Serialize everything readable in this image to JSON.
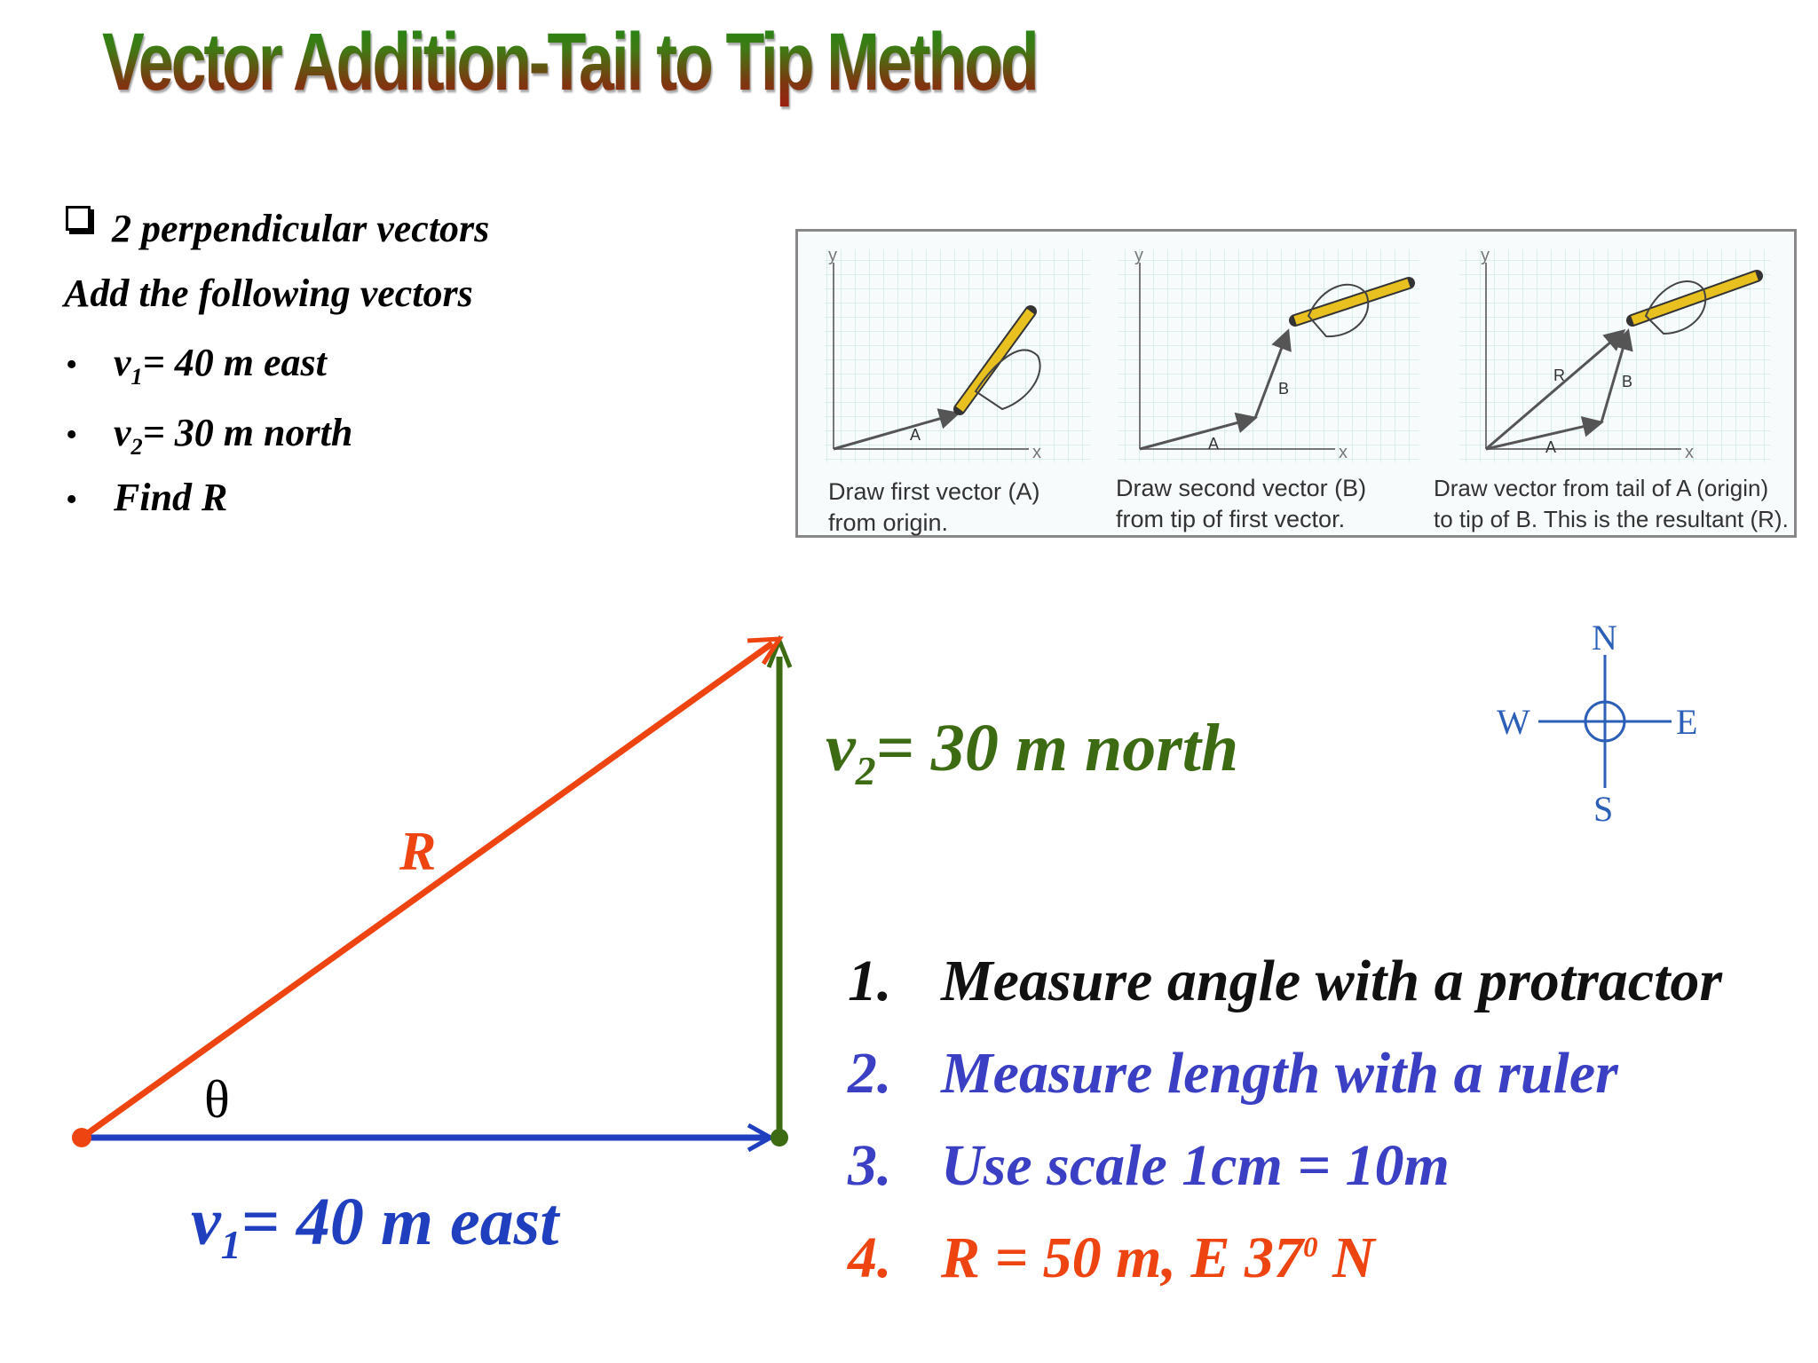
{
  "title": "Vector Addition-Tail to Tip Method",
  "problem": {
    "heading": "2 perpendicular vectors",
    "instruction": "Add the following vectors",
    "bullet": "•",
    "items": [
      {
        "sym": "v",
        "sub": "1",
        "text": "= 40 m east"
      },
      {
        "sym": "v",
        "sub": "2",
        "text": "= 30 m north"
      },
      {
        "text": "Find R"
      }
    ]
  },
  "panel": {
    "steps": [
      {
        "caption_line1": "Draw first vector (A)",
        "caption_line2": "from origin."
      },
      {
        "caption_line1": "Draw second vector (B)",
        "caption_line2": "from tip of first vector."
      },
      {
        "caption_line1": "Draw vector from tail of A (origin)",
        "caption_line2": "to tip of B. This is the resultant (R)."
      }
    ],
    "axis_x": "x",
    "axis_y": "y",
    "vec_a": "A",
    "vec_b": "B",
    "vec_r": "R"
  },
  "diagram": {
    "r_label": "R",
    "theta": "θ",
    "v1": {
      "sym": "v",
      "sub": "1",
      "text": "= 40 m east"
    },
    "v2": {
      "sym": "v",
      "sub": "2",
      "text": "= 30 m north"
    },
    "colors": {
      "r": "#ee4411",
      "v1": "#1f3fbf",
      "v2": "#3d6b14"
    }
  },
  "compass": {
    "n": "N",
    "s": "S",
    "e": "E",
    "w": "W",
    "color": "#2b5fb8"
  },
  "steps": [
    {
      "num": "1.",
      "text": "Measure angle with  a protractor",
      "color": "#111111"
    },
    {
      "num": "2.",
      "text": "Measure length with a ruler",
      "color": "#3a3fc4"
    },
    {
      "num": "3.",
      "text": "Use scale 1cm = 10m",
      "color": "#3a3fc4"
    },
    {
      "num": "4.",
      "text_pre": "R = 50 m,  E 37",
      "sup": "0",
      "text_post": " N",
      "color": "#ee4411"
    }
  ]
}
